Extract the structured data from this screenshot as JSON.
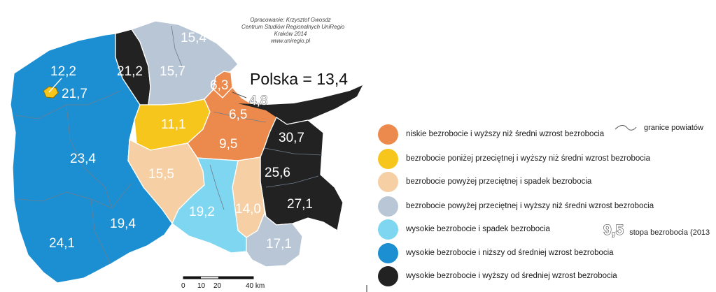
{
  "credit": {
    "line1": "Opracowanie: Krzysztof Gwosdz",
    "line2": "Centrum Studiów Regionalnych UniRegio",
    "line3": "Kraków 2014",
    "line4": "www.uniregio.pl"
  },
  "national": {
    "label": "Polska = 13,4"
  },
  "colors": {
    "orange": "#ec8a4d",
    "yellow": "#f7c61c",
    "peach": "#f6cfa4",
    "grey": "#b9c6d6",
    "light_blue": "#7fd6f0",
    "blue": "#1b8fd2",
    "black": "#222222"
  },
  "map_values": {
    "v_12_2": "12,2",
    "v_21_7": "21,7",
    "v_21_2": "21,2",
    "v_15_7": "15,7",
    "v_15_4": "15,4",
    "v_6_3": "6,3",
    "v_4_8": "4,8",
    "v_6_5": "6,5",
    "v_11_1": "11,1",
    "v_9_5": "9,5",
    "v_30_7": "30,7",
    "v_23_4": "23,4",
    "v_15_5": "15,5",
    "v_25_6": "25,6",
    "v_27_1": "27,1",
    "v_19_2": "19,2",
    "v_14_0": "14,0",
    "v_19_4": "19,4",
    "v_24_1": "24,1",
    "v_17_1": "17,1"
  },
  "legend": {
    "items": [
      {
        "label": "niskie bezrobocie i wyższy niż średni wzrost bezrobocia",
        "color": "#ec8a4d"
      },
      {
        "label": "bezrobocie poniżej przeciętnej i wyższy niż średni wzrost bezrobocia",
        "color": "#f7c61c"
      },
      {
        "label": "bezrobocie powyżej przeciętnej i spadek bezrobocia",
        "color": "#f6cfa4"
      },
      {
        "label": "bezrobocie powyżej przeciętnej i wyższy niż średni wzrost bezrobocia",
        "color": "#b9c6d6"
      },
      {
        "label": "wysokie bezrobocie i spadek bezrobocia",
        "color": "#7fd6f0"
      },
      {
        "label": "wysokie bezrobocie i niższy od średniej wzrost bezrobocia",
        "color": "#1b8fd2"
      },
      {
        "label": "wysokie bezrobocie i wyższy od średniej wzrost bezrobocia",
        "color": "#222222"
      }
    ],
    "boundary_label": "granice powiatów",
    "rate_sample": "9,5",
    "rate_label": "stopa bezrobocia (2013"
  },
  "scale": {
    "t0": "0",
    "t10": "10",
    "t20": "20",
    "t40": "40 km"
  }
}
